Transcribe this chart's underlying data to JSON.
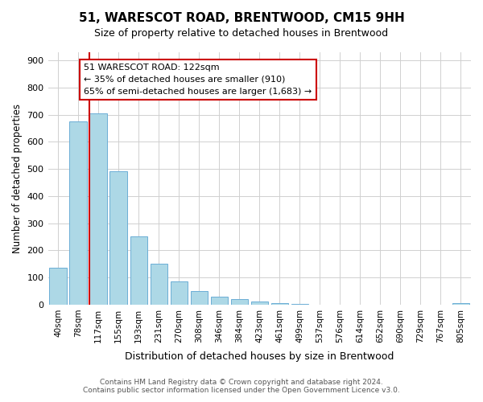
{
  "title": "51, WARESCOT ROAD, BRENTWOOD, CM15 9HH",
  "subtitle": "Size of property relative to detached houses in Brentwood",
  "xlabel": "Distribution of detached houses by size in Brentwood",
  "ylabel": "Number of detached properties",
  "bin_labels": [
    "40sqm",
    "78sqm",
    "117sqm",
    "155sqm",
    "193sqm",
    "231sqm",
    "270sqm",
    "308sqm",
    "346sqm",
    "384sqm",
    "423sqm",
    "461sqm",
    "499sqm",
    "537sqm",
    "576sqm",
    "614sqm",
    "652sqm",
    "690sqm",
    "729sqm",
    "767sqm",
    "805sqm"
  ],
  "bar_heights": [
    137,
    675,
    706,
    492,
    253,
    152,
    85,
    50,
    30,
    20,
    12,
    5,
    2,
    1,
    0,
    0,
    0,
    0,
    0,
    0,
    5
  ],
  "bar_color": "#add8e6",
  "bar_edge_color": "#6baed6",
  "red_line_color": "#cc0000",
  "annotation_text_line1": "51 WARESCOT ROAD: 122sqm",
  "annotation_text_line2": "← 35% of detached houses are smaller (910)",
  "annotation_text_line3": "65% of semi-detached houses are larger (1,683) →",
  "annotation_box_color": "#ffffff",
  "annotation_box_edge": "#cc0000",
  "ylim": [
    0,
    930
  ],
  "yticks": [
    0,
    100,
    200,
    300,
    400,
    500,
    600,
    700,
    800,
    900
  ],
  "footer_line1": "Contains HM Land Registry data © Crown copyright and database right 2024.",
  "footer_line2": "Contains public sector information licensed under the Open Government Licence v3.0.",
  "background_color": "#ffffff",
  "grid_color": "#d0d0d0"
}
